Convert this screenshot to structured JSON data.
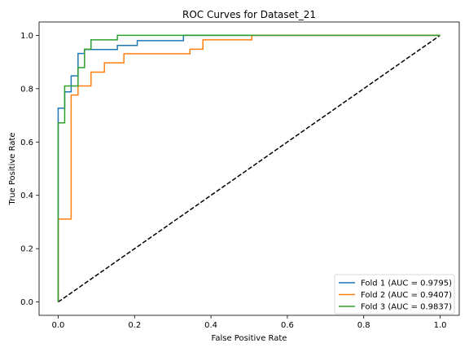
{
  "chart_data": {
    "type": "line",
    "title": "ROC Curves for Dataset_21",
    "xlabel": "False Positive Rate",
    "ylabel": "True Positive Rate",
    "xlim": [
      -0.05,
      1.05
    ],
    "ylim": [
      -0.05,
      1.05
    ],
    "xticks": [
      0.0,
      0.2,
      0.4,
      0.6,
      0.8,
      1.0
    ],
    "yticks": [
      0.0,
      0.2,
      0.4,
      0.6,
      0.8,
      1.0
    ],
    "xtick_labels": [
      "0.0",
      "0.2",
      "0.4",
      "0.6",
      "0.8",
      "1.0"
    ],
    "ytick_labels": [
      "0.0",
      "0.2",
      "0.4",
      "0.6",
      "0.8",
      "1.0"
    ],
    "legend_position": "lower-right",
    "grid": false,
    "series": [
      {
        "name": "Fold 1 (AUC = 0.9795)",
        "color": "#1f77b4",
        "x": [
          0.0,
          0.0,
          0.0,
          0.017,
          0.017,
          0.034,
          0.034,
          0.052,
          0.052,
          0.069,
          0.069,
          0.155,
          0.155,
          0.207,
          0.207,
          0.328,
          0.328,
          1.0
        ],
        "y": [
          0.0,
          0.667,
          0.727,
          0.727,
          0.788,
          0.788,
          0.848,
          0.848,
          0.932,
          0.932,
          0.947,
          0.947,
          0.962,
          0.962,
          0.98,
          0.98,
          1.0,
          1.0
        ]
      },
      {
        "name": "Fold 2 (AUC = 0.9407)",
        "color": "#ff7f0e",
        "x": [
          0.0,
          0.0,
          0.034,
          0.034,
          0.052,
          0.052,
          0.086,
          0.086,
          0.121,
          0.121,
          0.172,
          0.172,
          0.345,
          0.345,
          0.379,
          0.379,
          0.507,
          0.507,
          1.0
        ],
        "y": [
          0.0,
          0.311,
          0.311,
          0.776,
          0.776,
          0.81,
          0.81,
          0.862,
          0.862,
          0.897,
          0.897,
          0.931,
          0.931,
          0.948,
          0.948,
          0.983,
          0.983,
          1.0,
          1.0
        ]
      },
      {
        "name": "Fold 3 (AUC = 0.9837)",
        "color": "#2ca02c",
        "x": [
          0.0,
          0.0,
          0.017,
          0.017,
          0.052,
          0.052,
          0.069,
          0.069,
          0.086,
          0.086,
          0.155,
          0.155,
          1.0
        ],
        "y": [
          0.0,
          0.672,
          0.672,
          0.81,
          0.81,
          0.879,
          0.879,
          0.948,
          0.948,
          0.983,
          0.983,
          1.0,
          1.0
        ]
      }
    ],
    "reference_line": {
      "x": [
        0.0,
        1.0
      ],
      "y": [
        0.0,
        1.0
      ],
      "color": "#000000",
      "style": "dashed"
    }
  }
}
